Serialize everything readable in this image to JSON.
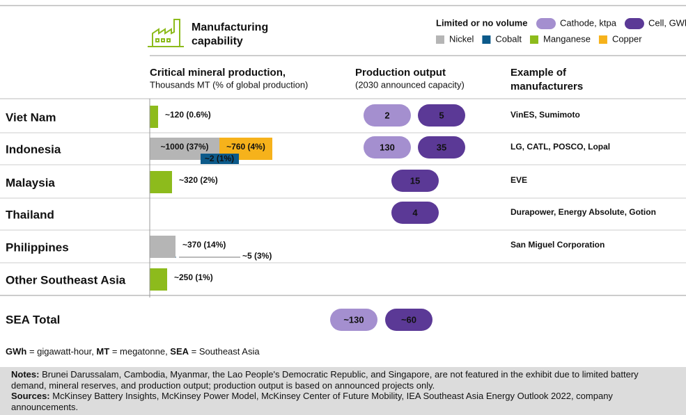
{
  "header": {
    "title_lines": [
      "Manufacturing",
      "capability"
    ],
    "legend_title": "Limited or no volume",
    "legend_pills": [
      {
        "name": "Cathode, ktpa",
        "color": "#a48fcf"
      },
      {
        "name": "Cell, GWh",
        "color": "#5b3996"
      }
    ],
    "minerals": [
      {
        "name": "Nickel",
        "color": "#b5b5b5"
      },
      {
        "name": "Cobalt",
        "color": "#0c5a8a"
      },
      {
        "name": "Manganese",
        "color": "#8dbb1c"
      },
      {
        "name": "Copper",
        "color": "#f6b21b"
      }
    ]
  },
  "columns": [
    {
      "title": "Critical mineral production,",
      "subtitle": "Thousands MT (% of global production)"
    },
    {
      "title": "Production output",
      "subtitle": "(2030 announced capacity)"
    },
    {
      "title_lines": [
        "Example of",
        "manufacturers"
      ]
    }
  ],
  "rows": [
    {
      "country": "Viet Nam",
      "bars": [
        {
          "mineral": "Manganese",
          "value": 120,
          "label": "~120 (0.6%)"
        }
      ],
      "cathode": 2,
      "cell": 5,
      "manufacturers": "VinES, Sumimoto"
    },
    {
      "country": "Indonesia",
      "bars": [
        {
          "mineral": "Nickel",
          "value": 1000,
          "label": "~1000 (37%)"
        },
        {
          "mineral": "Copper",
          "value": 760,
          "label": "~760 (4%)"
        },
        {
          "mineral": "Cobalt",
          "value": 2,
          "label": "~2 (1%)"
        }
      ],
      "cathode": 130,
      "cell": 35,
      "manufacturers": "LG, CATL, POSCO, Lopal"
    },
    {
      "country": "Malaysia",
      "bars": [
        {
          "mineral": "Manganese",
          "value": 320,
          "label": "~320 (2%)"
        }
      ],
      "cathode": null,
      "cell": 15,
      "manufacturers": "EVE"
    },
    {
      "country": "Thailand",
      "bars": [],
      "cathode": null,
      "cell": 4,
      "manufacturers": "Durapower, Energy Absolute, Gotion"
    },
    {
      "country": "Philippines",
      "bars": [
        {
          "mineral": "Nickel",
          "value": 370,
          "label": "~370 (14%)"
        },
        {
          "mineral": "Cobalt",
          "value": 5,
          "label": "~5 (3%)"
        }
      ],
      "cathode": null,
      "cell": null,
      "manufacturers": "San Miguel Corporation"
    },
    {
      "country": "Other Southeast Asia",
      "bars": [
        {
          "mineral": "Manganese",
          "value": 250,
          "label": "~250 (1%)"
        }
      ],
      "cathode": null,
      "cell": null,
      "manufacturers": null
    }
  ],
  "total": {
    "name": "SEA Total",
    "cathode": 130,
    "cathode_label": "~130",
    "cell": 60,
    "cell_label": "~60"
  },
  "definitions": [
    {
      "term": "GWh",
      "text": " = gigawatt-hour, "
    },
    {
      "term": "MT",
      "text": " = megatonne, "
    },
    {
      "term": "SEA",
      "text": " = Southeast Asia"
    }
  ],
  "notes": [
    {
      "term": "Notes:",
      "text": " Brunei Darussalam, Cambodia, Myanmar, the Lao People's Democratic Republic, and Singapore, are not featured in the exhibit due to limited battery demand, mineral reserves, and production output; production output is based on announced projects only."
    },
    {
      "term": "Sources:",
      "text": " McKinsey Battery Insights, McKinsey Power Model, McKinsey Center of Future Mobility, IEA Southeast Asia Energy Outlook 2022, company announcements."
    }
  ]
}
